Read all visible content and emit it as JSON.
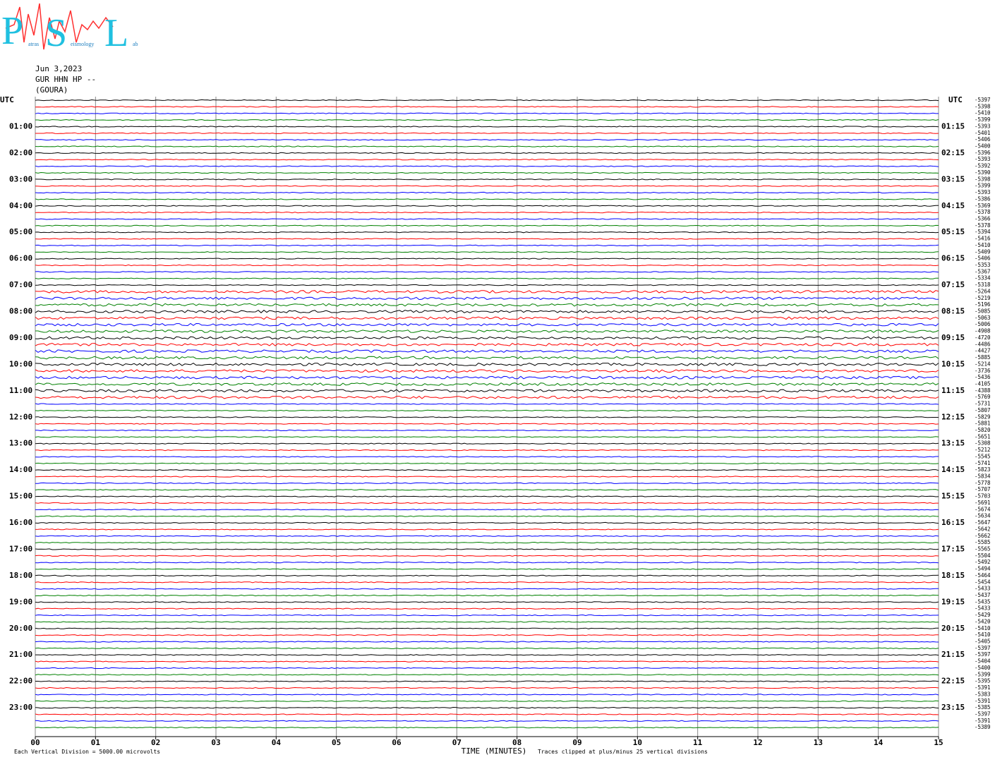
{
  "logo": {
    "letters": [
      "P",
      "S",
      "L"
    ],
    "words": [
      "atras",
      "eismology",
      "ab"
    ]
  },
  "chart_data": {
    "type": "helicorder",
    "header": [
      "Jun 3,2023",
      "GUR HHN HP --",
      "(GOURA)"
    ],
    "left_labels": [
      "UTC",
      "01:00",
      "02:00",
      "03:00",
      "04:00",
      "05:00",
      "06:00",
      "07:00",
      "08:00",
      "09:00",
      "10:00",
      "11:00",
      "12:00",
      "13:00",
      "14:00",
      "15:00",
      "16:00",
      "17:00",
      "18:00",
      "19:00",
      "20:00",
      "21:00",
      "22:00",
      "23:00"
    ],
    "right_labels": [
      "UTC",
      "01:15",
      "02:15",
      "03:15",
      "04:15",
      "05:15",
      "06:15",
      "07:15",
      "08:15",
      "09:15",
      "10:15",
      "11:15",
      "12:15",
      "13:15",
      "14:15",
      "15:15",
      "16:15",
      "17:15",
      "18:15",
      "19:15",
      "20:15",
      "21:15",
      "22:15",
      "23:15"
    ],
    "trace_offsets": [
      -5397,
      -5398,
      -5410,
      -5399,
      -5393,
      -5401,
      -5406,
      -5400,
      -5396,
      -5393,
      -5392,
      -5390,
      -5398,
      -5399,
      -5393,
      -5386,
      -5369,
      -5378,
      -5366,
      -5378,
      -5394,
      -5416,
      -5410,
      -5409,
      -5406,
      -5353,
      -5367,
      -5334,
      -5318,
      -5264,
      -5219,
      -5196,
      -5085,
      -5063,
      -5006,
      -4908,
      -4720,
      -4486,
      -4427,
      -5885,
      -5214,
      -3736,
      -5436,
      -4105,
      -4388,
      -5769,
      -5731,
      -5807,
      -5829,
      -5881,
      -5820,
      -5651,
      -5308,
      -5212,
      -5545,
      -5741,
      -5823,
      -5834,
      -5778,
      -5707,
      -5703,
      -5691,
      -5674,
      -5634,
      -5647,
      -5642,
      -5662,
      -5585,
      -5565,
      -5504,
      -5492,
      -5494,
      -5464,
      -5454,
      -5433,
      -5437,
      -5435,
      -5433,
      -5429,
      -5420,
      -5410,
      -5410,
      -5405,
      -5397,
      -5397,
      -5404,
      -5400,
      -5399,
      -5395,
      -5391,
      -5383,
      -5391,
      -5385,
      -5397,
      -5391,
      -5389
    ],
    "trace_colors": [
      "#000000",
      "#ff0000",
      "#0000ff",
      "#008000"
    ],
    "xlim": [
      0,
      15
    ],
    "xticks": [
      {
        "value": 0,
        "label": "00"
      },
      {
        "value": 1,
        "label": "01"
      },
      {
        "value": 2,
        "label": "02"
      },
      {
        "value": 3,
        "label": "03"
      },
      {
        "value": 4,
        "label": "04"
      },
      {
        "value": 5,
        "label": "05"
      },
      {
        "value": 6,
        "label": "06"
      },
      {
        "value": 7,
        "label": "07"
      },
      {
        "value": 8,
        "label": "08"
      },
      {
        "value": 9,
        "label": "09"
      },
      {
        "value": 10,
        "label": "10"
      },
      {
        "value": 11,
        "label": "11"
      },
      {
        "value": 12,
        "label": "12"
      },
      {
        "value": 13,
        "label": "13"
      },
      {
        "value": 14,
        "label": "14"
      },
      {
        "value": 15,
        "label": "15"
      }
    ],
    "xlabel": "TIME (MINUTES)",
    "notes": [
      "Each Vertical Division = 5000.00 microvolts",
      "Traces clipped at plus/minus 25 vertical divisions"
    ],
    "grid": true
  }
}
